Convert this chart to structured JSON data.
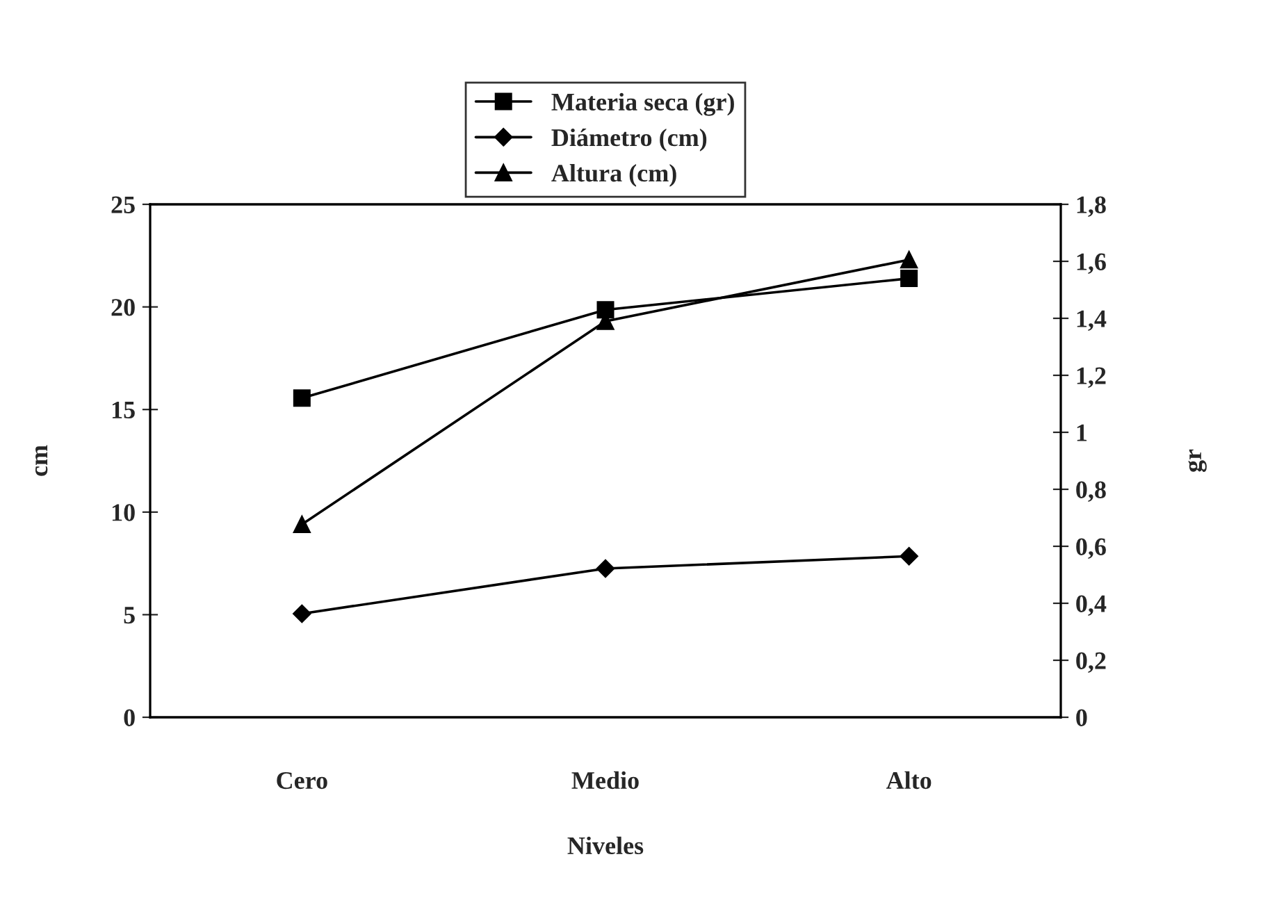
{
  "chart_data": {
    "type": "line",
    "categories": [
      "Cero",
      "Medio",
      "Alto"
    ],
    "xlabel": "Niveles",
    "ylabel": "cm",
    "y2label": "gr",
    "series": [
      {
        "name": "Materia seca (gr)",
        "color": "#000000",
        "marker": "square",
        "axis": "y2",
        "values": [
          1.12,
          1.43,
          1.54
        ]
      },
      {
        "name": "Diámetro (cm)",
        "color": "#000000",
        "marker": "diamond",
        "values": [
          5.05,
          7.25,
          7.85
        ]
      },
      {
        "name": "Altura (cm)",
        "color": "#000000",
        "marker": "triangle",
        "values": [
          9.4,
          19.3,
          22.3
        ]
      }
    ],
    "ylim": [
      0,
      25
    ],
    "yticks": [
      0,
      5,
      10,
      15,
      20,
      25
    ],
    "y2lim": [
      0,
      1.8
    ],
    "y2ticks": [
      0,
      {
        "value": 0.2,
        "label": "0,2"
      },
      {
        "value": 0.4,
        "label": "0,4"
      },
      {
        "value": 0.6,
        "label": "0,6"
      },
      {
        "value": 0.8,
        "label": "0,8"
      },
      1,
      {
        "value": 1.2,
        "label": "1,2"
      },
      {
        "value": 1.4,
        "label": "1,4"
      },
      {
        "value": 1.6,
        "label": "1,6"
      },
      {
        "value": 1.8,
        "label": "1,8"
      }
    ],
    "grid": false,
    "legend": "top",
    "line_style": "solid"
  }
}
